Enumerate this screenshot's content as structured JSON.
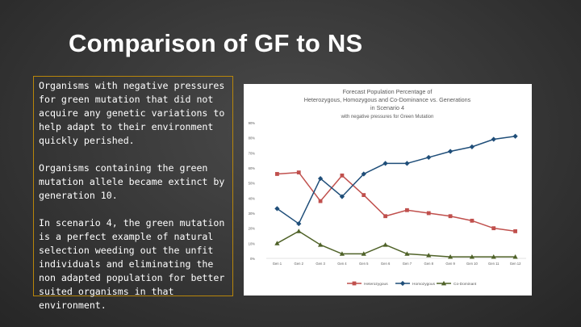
{
  "slide": {
    "title": "Comparison of GF to NS",
    "paragraphs": [
      "Organisms with negative pressures for green mutation that did not acquire any genetic variations to help adapt to their environment quickly perished.",
      "Organisms containing the green mutation allele became extinct by generation 10.",
      "In scenario 4, the green mutation is a perfect example of natural selection weeding out the unfit individuals and eliminating the non adapted population for better suited organisms in that environment."
    ]
  },
  "colors": {
    "background": "#3a3a3a",
    "title": "#ffffff",
    "text_box_border": "#b8860b",
    "heterozygous": "#c0504d",
    "homozygous": "#1f4e79",
    "co_dominant": "#4f6228"
  },
  "chart_data": {
    "type": "line",
    "title": "Forecast Population Percentage of Heterozygous, Homozygous and Co-Dominance vs. Generations in Scenario 4",
    "subtitle": "with negative pressures for Green Mutation",
    "categories": [
      "Gen 1",
      "Gen 2",
      "Gen 3",
      "Gen 4",
      "Gen 5",
      "Gen 6",
      "Gen 7",
      "Gen 8",
      "Gen 9",
      "Gen 10",
      "Gen 11",
      "Gen 12"
    ],
    "y_ticks": [
      "0%",
      "10%",
      "20%",
      "30%",
      "40%",
      "50%",
      "60%",
      "70%",
      "80%",
      "90%"
    ],
    "ylim": [
      0,
      90
    ],
    "grid": false,
    "legend_position": "bottom",
    "series": [
      {
        "name": "Heterozygous",
        "color": "#c0504d",
        "marker": "square",
        "values": [
          56,
          57,
          38,
          55,
          42,
          28,
          32,
          30,
          28,
          25,
          20,
          18
        ]
      },
      {
        "name": "Homozygous",
        "color": "#1f4e79",
        "marker": "diamond",
        "values": [
          33,
          23,
          53,
          41,
          56,
          63,
          63,
          67,
          71,
          74,
          79,
          81
        ]
      },
      {
        "name": "Co-Dominant",
        "color": "#4f6228",
        "marker": "triangle",
        "values": [
          10,
          18,
          9,
          3,
          3,
          9,
          3,
          2,
          1,
          1,
          1,
          1
        ]
      }
    ]
  }
}
